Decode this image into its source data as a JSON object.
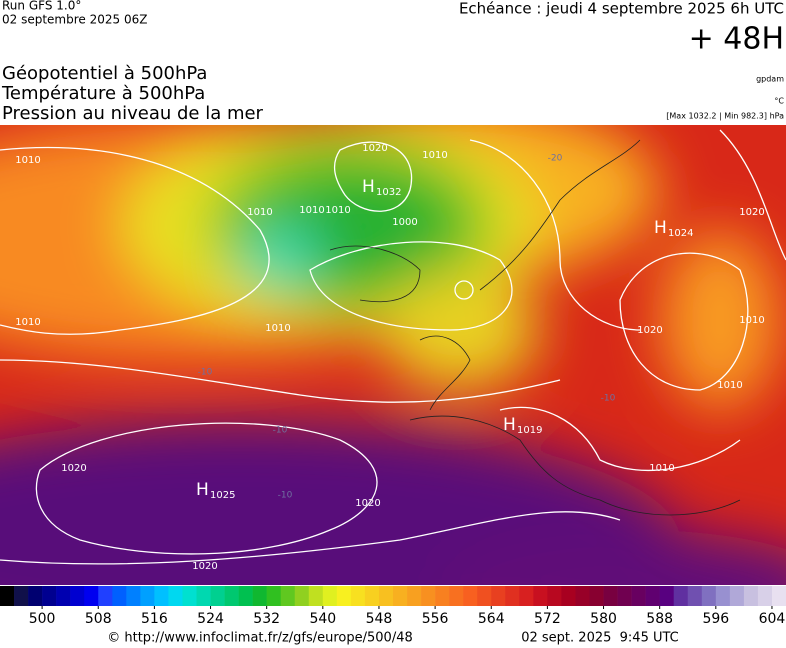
{
  "header": {
    "run": "Run GFS 1.0°",
    "run_date": "02 septembre 2025 06Z",
    "valid": "Echéance : jeudi 4 septembre 2025 6h UTC",
    "lead": "+ 48H",
    "fields": [
      "Géopotentiel à 500hPa",
      "Température à 500hPa",
      "Pression au niveau de la mer"
    ],
    "units": [
      "gpdam",
      "°C",
      "[Max 1032.2 | Min 982.3] hPa"
    ]
  },
  "map": {
    "isobar_labels": [
      "1010",
      "1020",
      "1010",
      "1010",
      "1010",
      "1010",
      "1000",
      "1010",
      "1020",
      "1020",
      "1020",
      "1020",
      "1020",
      "1010",
      "1010",
      "1010",
      "1010"
    ],
    "centers": [
      {
        "letter": "H",
        "value": "1032"
      },
      {
        "letter": "H",
        "value": "1024"
      },
      {
        "letter": "H",
        "value": "1019"
      },
      {
        "letter": "H",
        "value": "1025"
      }
    ],
    "temperature_labels": [
      "-20",
      "-10",
      "-10",
      "-10",
      "-10"
    ]
  },
  "colorbar": {
    "range": [
      494,
      606
    ],
    "ticks": [
      500,
      508,
      516,
      524,
      532,
      540,
      548,
      556,
      564,
      572,
      580,
      588,
      596,
      604
    ],
    "colors": [
      "#000000",
      "#10104a",
      "#000070",
      "#000090",
      "#0000b0",
      "#0000d0",
      "#0000f0",
      "#2040ff",
      "#0060ff",
      "#0080ff",
      "#00a0ff",
      "#00c0ff",
      "#00d8f0",
      "#00e0d0",
      "#00d8b0",
      "#00d090",
      "#00c870",
      "#00c050",
      "#10b830",
      "#30c020",
      "#60c820",
      "#90d020",
      "#c0e020",
      "#e0f020",
      "#f8f020",
      "#f8e020",
      "#f8d020",
      "#f8c020",
      "#f8b020",
      "#f8a020",
      "#f89020",
      "#f88020",
      "#f87020",
      "#f86020",
      "#f05020",
      "#e84020",
      "#e03020",
      "#d82020",
      "#c81020",
      "#b80820",
      "#a80020",
      "#980028",
      "#880030",
      "#780040",
      "#700050",
      "#680060",
      "#600070",
      "#580080",
      "#6030a0",
      "#7050b0",
      "#8070c0",
      "#9890d0",
      "#b0a8d8",
      "#c8c0e0",
      "#d8d0e8",
      "#e8e0f0"
    ]
  },
  "footer": {
    "source": "© http://www.infoclimat.fr/z/gfs/europe/500/48",
    "date": "02 sept. 2025  9:45 UTC"
  }
}
